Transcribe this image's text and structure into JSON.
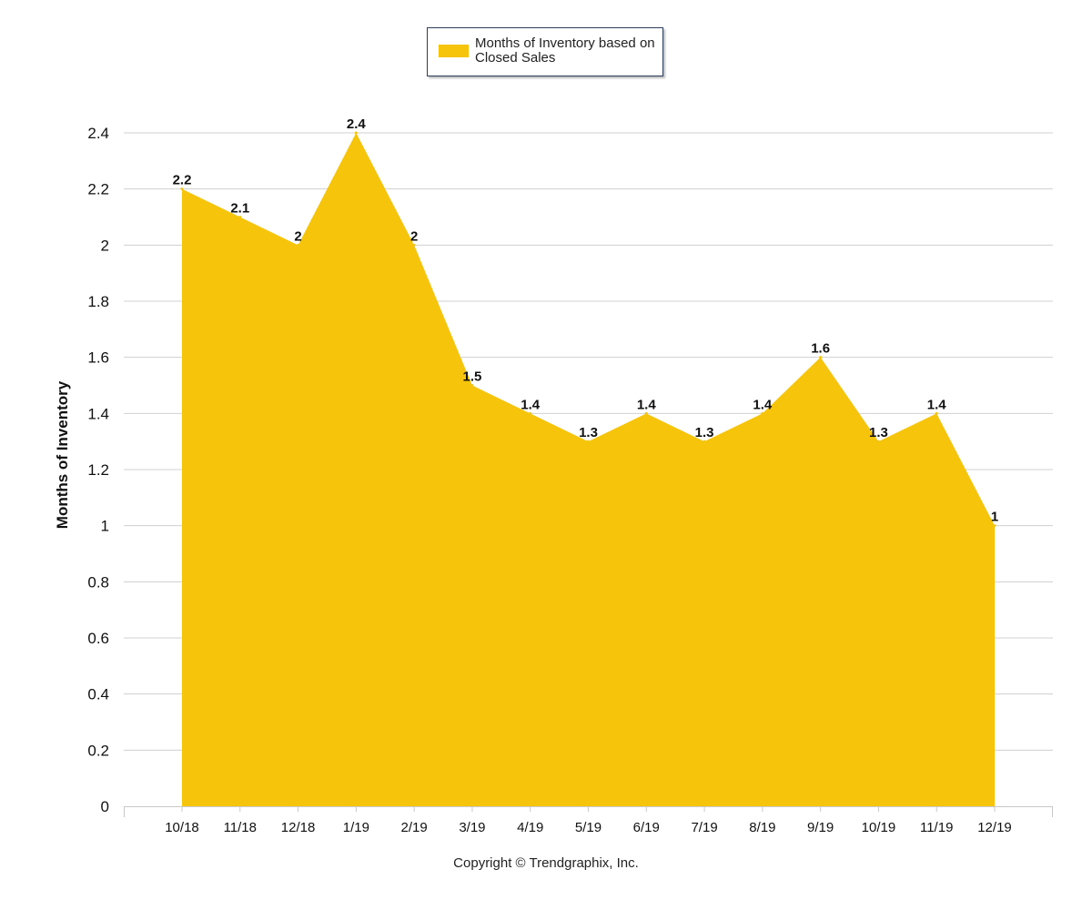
{
  "legend": {
    "label": "Months of Inventory based on Closed Sales",
    "color": "#f6c40a"
  },
  "footer": {
    "copyright": "Copyright © Trendgraphix, Inc."
  },
  "chart_data": {
    "type": "area",
    "categories": [
      "10/18",
      "11/18",
      "12/18",
      "1/19",
      "2/19",
      "3/19",
      "4/19",
      "5/19",
      "6/19",
      "7/19",
      "8/19",
      "9/19",
      "10/19",
      "11/19",
      "12/19"
    ],
    "series": [
      {
        "name": "Months of Inventory based on Closed Sales",
        "values": [
          2.2,
          2.1,
          2,
          2.4,
          2,
          1.5,
          1.4,
          1.3,
          1.4,
          1.3,
          1.4,
          1.6,
          1.3,
          1.4,
          1
        ],
        "color": "#f6c40a"
      }
    ],
    "data_labels": [
      "2.2",
      "2.1",
      "2",
      "2.4",
      "2",
      "1.5",
      "1.4",
      "1.3",
      "1.4",
      "1.3",
      "1.4",
      "1.6",
      "1.3",
      "1.4",
      "1"
    ],
    "ylabel": "Months of Inventory",
    "xlabel": "",
    "ylim": [
      0,
      2.4
    ],
    "yticks": [
      0,
      0.2,
      0.4,
      0.6,
      0.8,
      1,
      1.2,
      1.4,
      1.6,
      1.8,
      2,
      2.2,
      2.4
    ],
    "ytick_labels": [
      "0",
      "0.2",
      "0.4",
      "0.6",
      "0.8",
      "1",
      "1.2",
      "1.4",
      "1.6",
      "1.8",
      "2",
      "2.2",
      "2.4"
    ],
    "grid": true,
    "legend_position": "top-center"
  }
}
